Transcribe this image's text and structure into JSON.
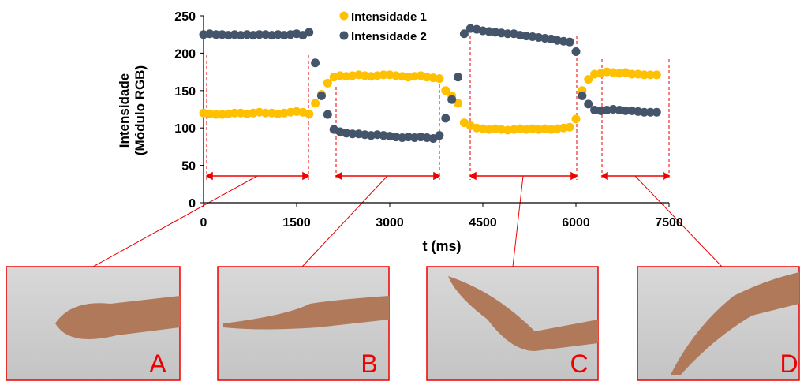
{
  "chart_data": {
    "type": "scatter",
    "xlabel": "t (ms)",
    "ylabel": [
      "Intensidade",
      "(Módulo  RGB)"
    ],
    "annotations": [
      "A",
      "B",
      "C",
      "D"
    ],
    "xlim": [
      0,
      7500
    ],
    "xticks": [
      0,
      1500,
      3000,
      4500,
      6000,
      7500
    ],
    "ylim": [
      0,
      250
    ],
    "yticks": [
      0,
      50,
      100,
      150,
      200,
      250
    ],
    "x": [
      0,
      100,
      200,
      300,
      400,
      500,
      600,
      700,
      800,
      900,
      1000,
      1100,
      1200,
      1300,
      1400,
      1500,
      1600,
      1700,
      1800,
      1900,
      2000,
      2100,
      2200,
      2300,
      2400,
      2500,
      2600,
      2700,
      2800,
      2900,
      3000,
      3100,
      3200,
      3300,
      3400,
      3500,
      3600,
      3700,
      3800,
      3900,
      4000,
      4100,
      4200,
      4300,
      4400,
      4500,
      4600,
      4700,
      4800,
      4900,
      5000,
      5100,
      5200,
      5300,
      5400,
      5500,
      5600,
      5700,
      5800,
      5900,
      6000,
      6100,
      6200,
      6300,
      6400,
      6500,
      6600,
      6700,
      6800,
      6900,
      7000,
      7100,
      7200,
      7300
    ],
    "series": [
      {
        "name": "Intensidade 1",
        "color": "#FFC000",
        "values": [
          120,
          119,
          118,
          118,
          119,
          120,
          120,
          119,
          120,
          121,
          120,
          120,
          119,
          120,
          121,
          122,
          121,
          119,
          133,
          145,
          160,
          168,
          170,
          169,
          170,
          171,
          170,
          169,
          170,
          171,
          171,
          170,
          169,
          168,
          169,
          170,
          168,
          167,
          166,
          150,
          143,
          133,
          107,
          103,
          100,
          99,
          98,
          99,
          98,
          97,
          98,
          99,
          98,
          99,
          98,
          99,
          98,
          99,
          100,
          101,
          112,
          150,
          165,
          172,
          173,
          175,
          174,
          173,
          174,
          172,
          172,
          171,
          171,
          171
        ]
      },
      {
        "name": "Intensidade 2",
        "color": "#44546A",
        "values": [
          225,
          226,
          225,
          225,
          224,
          225,
          224,
          225,
          224,
          225,
          225,
          224,
          225,
          224,
          225,
          226,
          224,
          228,
          187,
          143,
          118,
          98,
          95,
          93,
          92,
          92,
          91,
          90,
          91,
          90,
          89,
          88,
          87,
          88,
          87,
          88,
          87,
          86,
          90,
          113,
          138,
          168,
          226,
          233,
          232,
          230,
          229,
          228,
          227,
          226,
          226,
          224,
          223,
          222,
          221,
          220,
          219,
          217,
          216,
          215,
          202,
          143,
          132,
          124,
          123,
          124,
          125,
          124,
          123,
          123,
          122,
          121,
          121,
          121
        ]
      }
    ]
  }
}
